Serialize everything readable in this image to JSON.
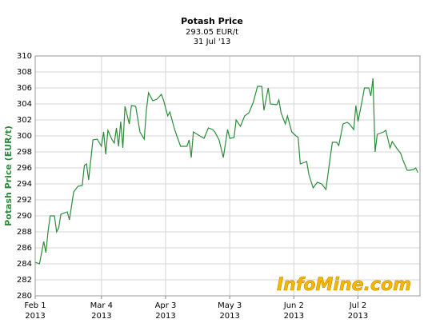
{
  "chart_data": {
    "type": "line",
    "title": "Potash Price",
    "subtitle": "293.05 EUR/t",
    "date_label": "31 Jul '13",
    "ylabel": "Potash Price (EUR/t)",
    "watermark": "InfoMine.com",
    "x": [
      "2013-02-01",
      "2013-02-03",
      "2013-02-05",
      "2013-02-06",
      "2013-02-07",
      "2013-02-08",
      "2013-02-10",
      "2013-02-11",
      "2013-02-12",
      "2013-02-13",
      "2013-02-16",
      "2013-02-17",
      "2013-02-19",
      "2013-02-21",
      "2013-02-23",
      "2013-02-24",
      "2013-02-25",
      "2013-02-26",
      "2013-02-28",
      "2013-03-02",
      "2013-03-04",
      "2013-03-05",
      "2013-03-06",
      "2013-03-07",
      "2013-03-09",
      "2013-03-10",
      "2013-03-11",
      "2013-03-12",
      "2013-03-13",
      "2013-03-14",
      "2013-03-15",
      "2013-03-17",
      "2013-03-18",
      "2013-03-20",
      "2013-03-22",
      "2013-03-24",
      "2013-03-25",
      "2013-03-26",
      "2013-03-28",
      "2013-03-30",
      "2013-04-01",
      "2013-04-02",
      "2013-04-04",
      "2013-04-05",
      "2013-04-07",
      "2013-04-08",
      "2013-04-10",
      "2013-04-13",
      "2013-04-14",
      "2013-04-15",
      "2013-04-16",
      "2013-04-19",
      "2013-04-21",
      "2013-04-23",
      "2013-04-25",
      "2013-04-26",
      "2013-04-28",
      "2013-04-30",
      "2013-05-02",
      "2013-05-03",
      "2013-05-05",
      "2013-05-06",
      "2013-05-08",
      "2013-05-10",
      "2013-05-12",
      "2013-05-14",
      "2013-05-16",
      "2013-05-18",
      "2013-05-19",
      "2013-05-21",
      "2013-05-22",
      "2013-05-25",
      "2013-05-26",
      "2013-05-27",
      "2013-05-29",
      "2013-05-30",
      "2013-06-01",
      "2013-06-03",
      "2013-06-04",
      "2013-06-05",
      "2013-06-08",
      "2013-06-09",
      "2013-06-11",
      "2013-06-13",
      "2013-06-15",
      "2013-06-17",
      "2013-06-19",
      "2013-06-20",
      "2013-06-22",
      "2013-06-23",
      "2013-06-25",
      "2013-06-27",
      "2013-06-28",
      "2013-06-30",
      "2013-07-01",
      "2013-07-02",
      "2013-07-04",
      "2013-07-05",
      "2013-07-07",
      "2013-07-08",
      "2013-07-09",
      "2013-07-10",
      "2013-07-11",
      "2013-07-14",
      "2013-07-15",
      "2013-07-17",
      "2013-07-18",
      "2013-07-20",
      "2013-07-22",
      "2013-07-23",
      "2013-07-25",
      "2013-07-26",
      "2013-07-28",
      "2013-07-29",
      "2013-07-30"
    ],
    "series": [
      {
        "name": "Potash Price",
        "color": "#2e8b3e",
        "values": [
          284.2,
          284.0,
          286.8,
          285.4,
          288.0,
          290.0,
          290.0,
          288.0,
          288.5,
          290.2,
          290.5,
          289.5,
          293.0,
          293.7,
          293.8,
          296.3,
          296.5,
          294.5,
          299.5,
          299.6,
          298.7,
          300.5,
          297.7,
          300.7,
          299.5,
          299.1,
          301.0,
          298.7,
          301.8,
          298.5,
          303.7,
          301.5,
          303.8,
          303.7,
          300.5,
          299.6,
          303.2,
          305.4,
          304.4,
          304.6,
          305.2,
          304.5,
          302.5,
          303.0,
          301.0,
          300.2,
          298.7,
          298.7,
          299.5,
          297.3,
          300.5,
          300.0,
          299.7,
          301.0,
          300.8,
          300.5,
          299.5,
          297.3,
          300.8,
          299.7,
          299.8,
          302.0,
          301.2,
          302.5,
          302.9,
          304.2,
          306.2,
          306.2,
          303.2,
          306.0,
          304.0,
          303.9,
          304.5,
          302.9,
          301.5,
          302.5,
          300.5,
          300.0,
          299.8,
          296.5,
          296.8,
          295.2,
          293.5,
          294.2,
          294.0,
          293.3,
          297.3,
          299.2,
          299.2,
          298.8,
          301.5,
          301.7,
          301.5,
          300.8,
          303.8,
          301.8,
          304.5,
          306.0,
          306.0,
          305.0,
          307.2,
          298.0,
          300.2,
          300.5,
          300.7,
          298.5,
          299.3,
          298.5,
          297.8,
          297.0,
          295.7,
          295.7,
          295.8,
          296.0,
          295.4
        ]
      }
    ],
    "xlim": [
      "2013-02-01",
      "2013-07-31"
    ],
    "xticks": [
      {
        "value": "2013-02-01",
        "label": [
          "Feb 1",
          "2013"
        ]
      },
      {
        "value": "2013-03-04",
        "label": [
          "Mar 4",
          "2013"
        ]
      },
      {
        "value": "2013-04-03",
        "label": [
          "Apr 3",
          "2013"
        ]
      },
      {
        "value": "2013-05-03",
        "label": [
          "May 3",
          "2013"
        ]
      },
      {
        "value": "2013-06-02",
        "label": [
          "Jun 2",
          "2013"
        ]
      },
      {
        "value": "2013-07-02",
        "label": [
          "Jul 2",
          "2013"
        ]
      }
    ],
    "ylim": [
      280,
      310
    ],
    "yticks": [
      280,
      282,
      284,
      286,
      288,
      290,
      292,
      294,
      296,
      298,
      300,
      302,
      304,
      306,
      308,
      310
    ],
    "grid": true
  }
}
